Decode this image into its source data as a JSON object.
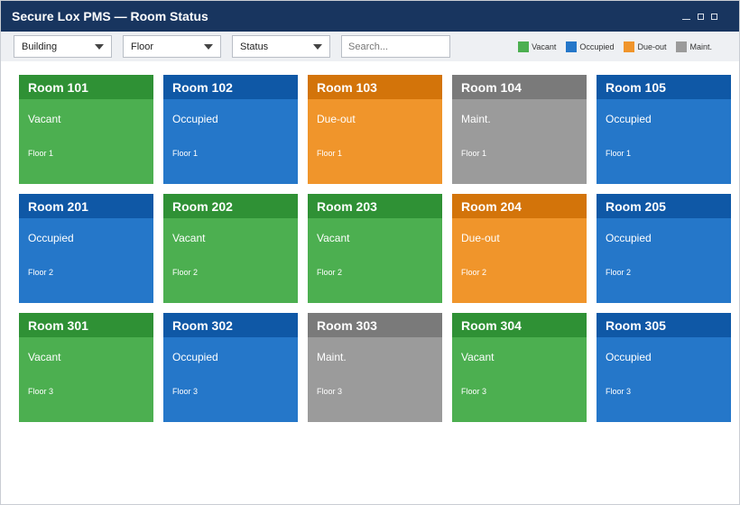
{
  "window": {
    "title": "Secure Lox PMS — Room Status",
    "controls": {
      "minimize": "minimize",
      "maximize": "maximize",
      "close": "close"
    }
  },
  "toolbar": {
    "building_label": "Building",
    "floor_label": "Floor",
    "status_label": "Status",
    "search_placeholder": "Search...",
    "search_value": ""
  },
  "legend": [
    {
      "label": "Vacant",
      "color": "#4caf50"
    },
    {
      "label": "Occupied",
      "color": "#2577c9"
    },
    {
      "label": "Due-out",
      "color": "#f0952b"
    },
    {
      "label": "Maint.",
      "color": "#9b9b9b"
    }
  ],
  "rooms": [
    {
      "title": "Room 101",
      "status": "Vacant",
      "floor": "Floor 1",
      "kind": "vacant"
    },
    {
      "title": "Room 102",
      "status": "Occupied",
      "floor": "Floor 1",
      "kind": "occupied"
    },
    {
      "title": "Room 103",
      "status": "Due-out",
      "floor": "Floor 1",
      "kind": "dueout"
    },
    {
      "title": "Room 104",
      "status": "Maint.",
      "floor": "Floor 1",
      "kind": "maint"
    },
    {
      "title": "Room 105",
      "status": "Occupied",
      "floor": "Floor 1",
      "kind": "occupied"
    },
    {
      "title": "Room 201",
      "status": "Occupied",
      "floor": "Floor 2",
      "kind": "occupied"
    },
    {
      "title": "Room 202",
      "status": "Vacant",
      "floor": "Floor 2",
      "kind": "vacant"
    },
    {
      "title": "Room 203",
      "status": "Vacant",
      "floor": "Floor 2",
      "kind": "vacant"
    },
    {
      "title": "Room 204",
      "status": "Due-out",
      "floor": "Floor 2",
      "kind": "dueout"
    },
    {
      "title": "Room 205",
      "status": "Occupied",
      "floor": "Floor 2",
      "kind": "occupied"
    },
    {
      "title": "Room 301",
      "status": "Vacant",
      "floor": "Floor 3",
      "kind": "vacant"
    },
    {
      "title": "Room 302",
      "status": "Occupied",
      "floor": "Floor 3",
      "kind": "occupied"
    },
    {
      "title": "Room 303",
      "status": "Maint.",
      "floor": "Floor 3",
      "kind": "maint"
    },
    {
      "title": "Room 304",
      "status": "Vacant",
      "floor": "Floor 3",
      "kind": "vacant"
    },
    {
      "title": "Room 305",
      "status": "Occupied",
      "floor": "Floor 3",
      "kind": "occupied"
    }
  ]
}
